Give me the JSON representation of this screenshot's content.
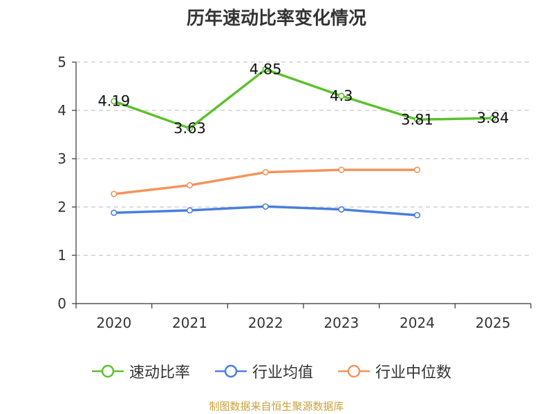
{
  "source_text": "制图数据来自恒生聚源数据库",
  "chart_data": {
    "type": "line",
    "title": "历年速动比率变化情况",
    "xlabel": "",
    "ylabel": "",
    "categories": [
      "2020",
      "2021",
      "2022",
      "2023",
      "2024",
      "2025"
    ],
    "ylim": [
      0,
      5
    ],
    "yticks": [
      "0",
      "1",
      "2",
      "3",
      "4",
      "5"
    ],
    "grid": true,
    "legend_position": "bottom",
    "series": [
      {
        "name": "速动比率",
        "color": "#5cc12e",
        "values": [
          4.19,
          3.63,
          4.85,
          4.3,
          3.81,
          3.84
        ],
        "labels": [
          "4.19",
          "3.63",
          "4.85",
          "4.3",
          "3.81",
          "3.84"
        ]
      },
      {
        "name": "行业均值",
        "color": "#4a7fdb",
        "values": [
          1.88,
          1.93,
          2.01,
          1.95,
          1.83,
          null
        ]
      },
      {
        "name": "行业中位数",
        "color": "#f4935b",
        "values": [
          2.27,
          2.45,
          2.72,
          2.77,
          2.77,
          null
        ]
      }
    ]
  }
}
